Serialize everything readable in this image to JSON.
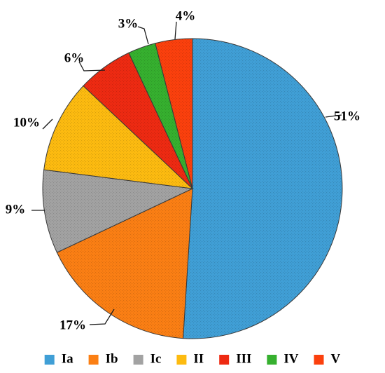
{
  "chart_data": {
    "type": "pie",
    "categories": [
      "Ia",
      "Ib",
      "Ic",
      "II",
      "III",
      "IV",
      "V"
    ],
    "values": [
      51,
      17,
      9,
      10,
      6,
      3,
      4
    ],
    "value_labels": [
      "51%",
      "17%",
      "9%",
      "10%",
      "6%",
      "3%",
      "4%"
    ],
    "colors": [
      "#409fd6",
      "#fb7f14",
      "#a2a2a2",
      "#fdbb10",
      "#ee2a12",
      "#36b02f",
      "#fb400d"
    ],
    "start_angle_deg": 0,
    "direction": "clockwise",
    "legend_position": "bottom",
    "pattern_fill": "dotted"
  }
}
